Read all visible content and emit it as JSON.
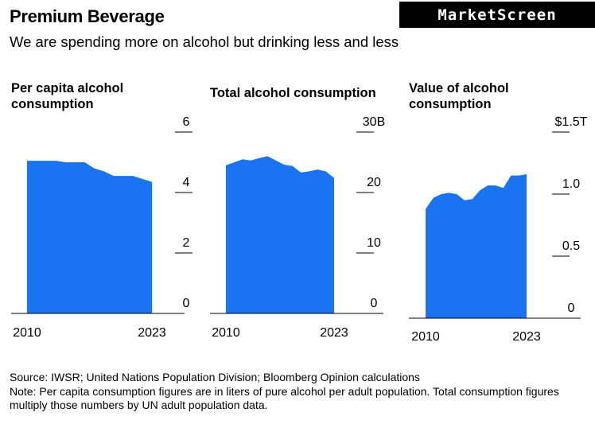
{
  "header": {
    "title": "Premium Beverage",
    "subtitle": "We are spending more on alcohol but drinking less and less",
    "brand": "MarketScreen"
  },
  "chart_data": [
    {
      "type": "area",
      "title": "Per capita alcohol consumption",
      "x": [
        2010,
        2011,
        2012,
        2013,
        2014,
        2015,
        2016,
        2017,
        2018,
        2019,
        2020,
        2021,
        2022,
        2023
      ],
      "values": [
        5.05,
        5.05,
        5.05,
        5.05,
        5.0,
        5.0,
        5.0,
        4.8,
        4.7,
        4.55,
        4.55,
        4.55,
        4.45,
        4.35
      ],
      "ylim": [
        0,
        6
      ],
      "yticks": [
        "6",
        "4",
        "2",
        "0"
      ],
      "xticks": [
        "2010",
        "2023"
      ],
      "color": "#1a73f0"
    },
    {
      "type": "area",
      "title": "Total alcohol consumption",
      "x": [
        2010,
        2011,
        2012,
        2013,
        2014,
        2015,
        2016,
        2017,
        2018,
        2019,
        2020,
        2021,
        2022,
        2023
      ],
      "values": [
        24.5,
        25.0,
        25.5,
        25.3,
        25.7,
        26.0,
        25.3,
        24.6,
        24.4,
        23.3,
        23.5,
        23.8,
        23.5,
        22.4
      ],
      "ylim": [
        0,
        30
      ],
      "yticks": [
        "30B",
        "20",
        "10",
        "0"
      ],
      "xticks": [
        "2010",
        "2023"
      ],
      "color": "#1a73f0"
    },
    {
      "type": "area",
      "title": "Value of alcohol consumption",
      "x": [
        2010,
        2011,
        2012,
        2013,
        2014,
        2015,
        2016,
        2017,
        2018,
        2019,
        2020,
        2021,
        2022,
        2023
      ],
      "values": [
        0.88,
        0.97,
        1.0,
        1.01,
        1.0,
        0.95,
        0.96,
        1.03,
        1.07,
        1.07,
        1.05,
        1.15,
        1.15,
        1.16
      ],
      "ylim": [
        0,
        1.5
      ],
      "yticks": [
        "$1.5T",
        "1.0",
        "0.5",
        "0"
      ],
      "xticks": [
        "2010",
        "2023"
      ],
      "color": "#1a73f0"
    }
  ],
  "footer": {
    "source": "Source: IWSR; United Nations Population Division; Bloomberg Opinion calculations",
    "note": "Note: Per capita consumption figures are in liters of pure alcohol per adult population. Total consumption figures multiply those numbers by UN adult population data."
  }
}
